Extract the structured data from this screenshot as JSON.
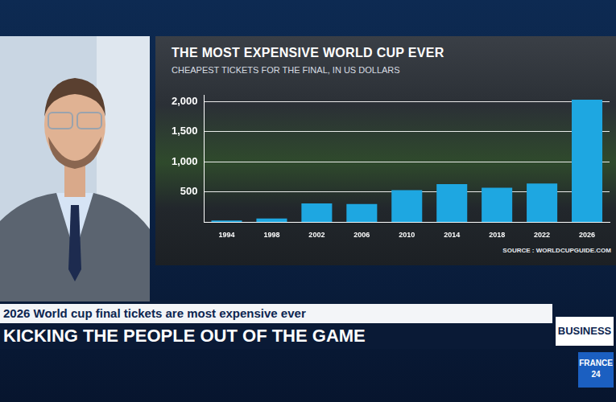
{
  "chart_data": {
    "type": "bar",
    "title": "THE MOST EXPENSIVE WORLD CUP EVER",
    "subtitle": "CHEAPEST TICKETS FOR THE FINAL, IN US DOLLARS",
    "source": "SOURCE : WORLDCUPGUIDE.COM",
    "categories": [
      "1994",
      "1998",
      "2002",
      "2006",
      "2010",
      "2014",
      "2018",
      "2022",
      "2026"
    ],
    "values": [
      25,
      60,
      310,
      300,
      530,
      630,
      570,
      640,
      2030
    ],
    "color": "#1ea7e1",
    "ylim": [
      0,
      2100
    ],
    "yticks": [
      500,
      {
        "value": 1000,
        "label": "1,000"
      },
      {
        "value": 1500,
        "label": "1,500"
      },
      {
        "value": 2000,
        "label": "2,000"
      }
    ],
    "grid": true
  },
  "caption": {
    "headline": "2026 World cup final tickets are most expensive ever",
    "banner": "KICKING THE PEOPLE OUT OF THE GAME",
    "tag": "BUSINESS",
    "logo": [
      "FRANCE",
      "24"
    ]
  }
}
